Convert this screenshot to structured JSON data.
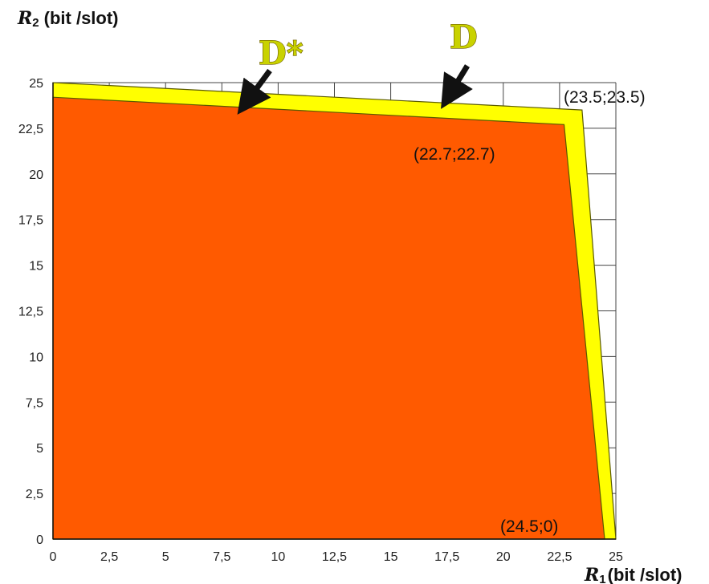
{
  "chart_data": {
    "type": "area",
    "xlabel_symbol": "R",
    "xlabel_sub": "1",
    "xlabel_unit": "(bit /slot)",
    "ylabel_symbol": "R",
    "ylabel_sub": "2",
    "ylabel_unit": "(bit /slot)",
    "xlim": [
      0,
      25
    ],
    "ylim": [
      0,
      25
    ],
    "x_ticks": [
      "0",
      "2,5",
      "5",
      "7,5",
      "10",
      "12,5",
      "15",
      "17,5",
      "20",
      "22,5",
      "25"
    ],
    "y_ticks": [
      "0",
      "2,5",
      "5",
      "7,5",
      "10",
      "12,5",
      "15",
      "17,5",
      "20",
      "22,5",
      "25"
    ],
    "grid": true,
    "series": [
      {
        "name": "D",
        "color": "#ffff00",
        "points": [
          [
            0,
            0
          ],
          [
            0,
            25
          ],
          [
            23.5,
            23.5
          ],
          [
            25,
            0
          ]
        ]
      },
      {
        "name": "D*",
        "color": "#ff5a00",
        "points": [
          [
            0,
            0
          ],
          [
            0,
            24.2
          ],
          [
            22.7,
            22.7
          ],
          [
            24.5,
            0
          ]
        ]
      }
    ],
    "annotations": [
      {
        "id": "outer-corner",
        "text": "(23.5;23.5)",
        "x": 23.5,
        "y": 23.5
      },
      {
        "id": "inner-corner",
        "text": "(22.7;22.7)",
        "x": 22.7,
        "y": 22.7
      },
      {
        "id": "inner-intercept",
        "text": "(24.5;0)",
        "x": 24.5,
        "y": 0
      }
    ]
  }
}
